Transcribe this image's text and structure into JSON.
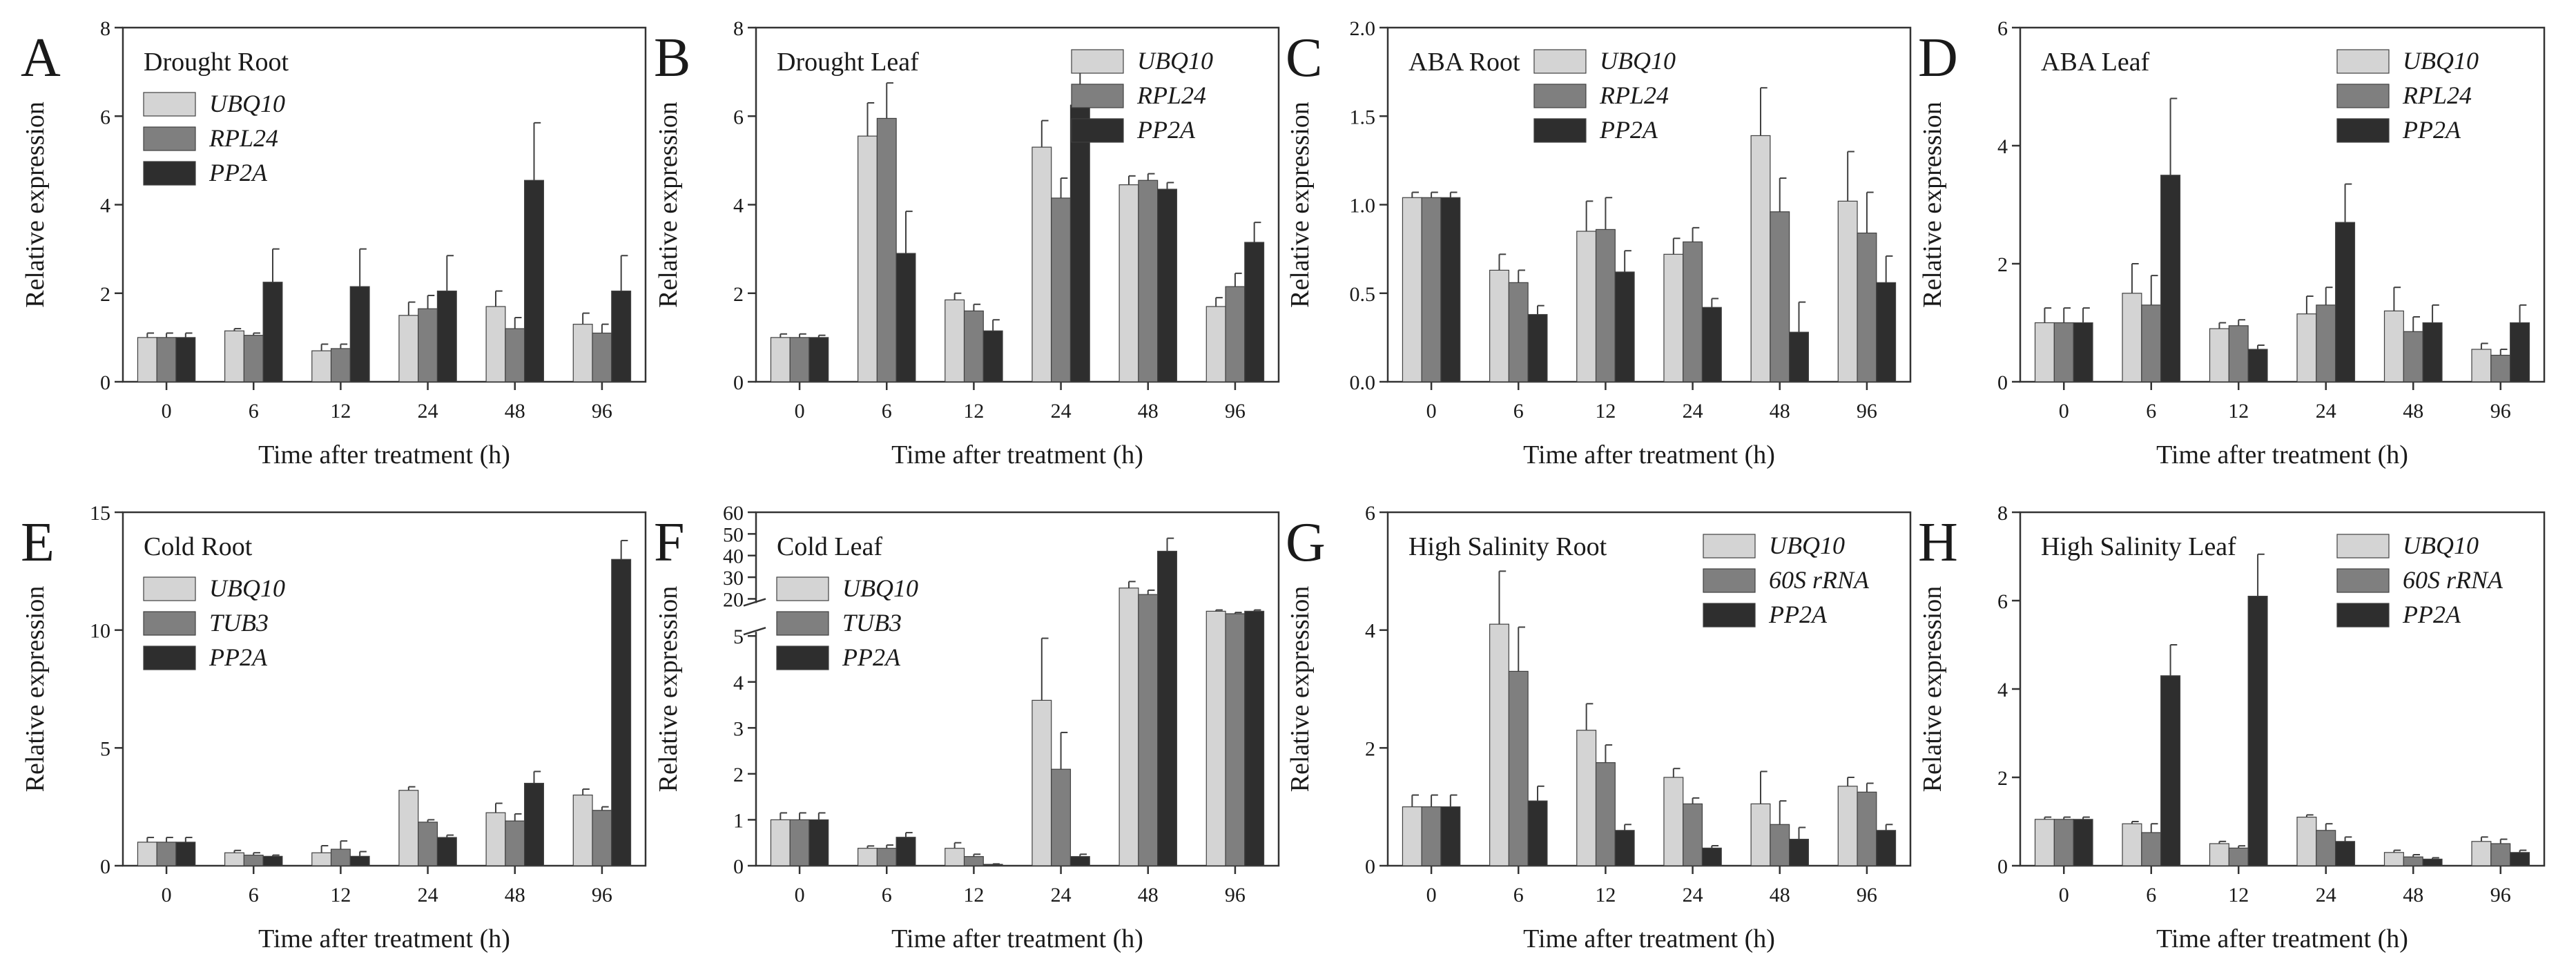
{
  "figure": {
    "xlabel": "Time after treatment (h)",
    "ylabel": "Relative expression",
    "categories": [
      "0",
      "6",
      "12",
      "24",
      "48",
      "96"
    ]
  },
  "colors": {
    "s1": "#d4d4d4",
    "s2": "#7f7f7f",
    "s3": "#2e2e2e",
    "frame": "#333333"
  },
  "chart_data": [
    {
      "letter": "A",
      "title": "Drought Root",
      "type": "bar",
      "categories": [
        "0",
        "6",
        "12",
        "24",
        "48",
        "96"
      ],
      "xlabel": "Time after treatment (h)",
      "ylabel": "Relative expression",
      "ylim": [
        0,
        8
      ],
      "yticks": [
        "0",
        "2",
        "4",
        "6",
        "8"
      ],
      "legend": "top-left",
      "series": [
        {
          "name": "UBQ10",
          "values": [
            1.0,
            1.15,
            0.7,
            1.5,
            1.7,
            1.3
          ],
          "errors": [
            0.1,
            0.05,
            0.15,
            0.3,
            0.35,
            0.25
          ]
        },
        {
          "name": "RPL24",
          "values": [
            1.0,
            1.05,
            0.75,
            1.65,
            1.2,
            1.1
          ],
          "errors": [
            0.1,
            0.05,
            0.1,
            0.3,
            0.25,
            0.2
          ]
        },
        {
          "name": "PP2A",
          "values": [
            1.0,
            2.25,
            2.15,
            2.05,
            4.55,
            2.05
          ],
          "errors": [
            0.1,
            0.75,
            0.85,
            0.8,
            1.3,
            0.8
          ]
        }
      ]
    },
    {
      "letter": "B",
      "title": "Drought Leaf",
      "type": "bar",
      "categories": [
        "0",
        "6",
        "12",
        "24",
        "48",
        "96"
      ],
      "xlabel": "Time after treatment (h)",
      "ylabel": "Relative expression",
      "ylim": [
        0,
        8
      ],
      "yticks": [
        "0",
        "2",
        "4",
        "6",
        "8"
      ],
      "legend": "top-right",
      "series": [
        {
          "name": "UBQ10",
          "values": [
            1.0,
            5.55,
            1.85,
            5.3,
            4.45,
            1.7
          ],
          "errors": [
            0.08,
            0.75,
            0.15,
            0.6,
            0.2,
            0.2
          ]
        },
        {
          "name": "RPL24",
          "values": [
            1.0,
            5.95,
            1.6,
            4.15,
            4.55,
            2.15
          ],
          "errors": [
            0.08,
            0.8,
            0.15,
            0.45,
            0.15,
            0.3
          ]
        },
        {
          "name": "PP2A",
          "values": [
            1.0,
            2.9,
            1.15,
            6.25,
            4.35,
            3.15
          ],
          "errors": [
            0.05,
            0.95,
            0.25,
            0.75,
            0.15,
            0.45
          ]
        }
      ]
    },
    {
      "letter": "C",
      "title": "ABA Root",
      "type": "bar",
      "categories": [
        "0",
        "6",
        "12",
        "24",
        "48",
        "96"
      ],
      "xlabel": "Time after treatment (h)",
      "ylabel": "Relative expression",
      "ylim": [
        0,
        2.0
      ],
      "yticks": [
        "0.0",
        "0.5",
        "1.0",
        "1.5",
        "2.0"
      ],
      "legend": "top-center",
      "series": [
        {
          "name": "UBQ10",
          "values": [
            1.04,
            0.63,
            0.85,
            0.72,
            1.39,
            1.02
          ],
          "errors": [
            0.03,
            0.09,
            0.17,
            0.09,
            0.27,
            0.28
          ]
        },
        {
          "name": "RPL24",
          "values": [
            1.04,
            0.56,
            0.86,
            0.79,
            0.96,
            0.84
          ],
          "errors": [
            0.03,
            0.07,
            0.18,
            0.08,
            0.19,
            0.23
          ]
        },
        {
          "name": "PP2A",
          "values": [
            1.04,
            0.38,
            0.62,
            0.42,
            0.28,
            0.56
          ],
          "errors": [
            0.03,
            0.05,
            0.12,
            0.05,
            0.17,
            0.15
          ]
        }
      ]
    },
    {
      "letter": "D",
      "title": "ABA Leaf",
      "type": "bar",
      "categories": [
        "0",
        "6",
        "12",
        "24",
        "48",
        "96"
      ],
      "xlabel": "Time after treatment (h)",
      "ylabel": "Relative expression",
      "ylim": [
        0,
        6
      ],
      "yticks": [
        "0",
        "2",
        "4",
        "6"
      ],
      "legend": "top-right",
      "series": [
        {
          "name": "UBQ10",
          "values": [
            1.0,
            1.5,
            0.9,
            1.15,
            1.2,
            0.55
          ],
          "errors": [
            0.25,
            0.5,
            0.1,
            0.3,
            0.4,
            0.1
          ]
        },
        {
          "name": "RPL24",
          "values": [
            1.0,
            1.3,
            0.95,
            1.3,
            0.85,
            0.45
          ],
          "errors": [
            0.25,
            0.5,
            0.1,
            0.3,
            0.25,
            0.1
          ]
        },
        {
          "name": "PP2A",
          "values": [
            1.0,
            3.5,
            0.55,
            2.7,
            1.0,
            1.0
          ],
          "errors": [
            0.25,
            1.3,
            0.07,
            0.65,
            0.3,
            0.3
          ]
        }
      ]
    },
    {
      "letter": "E",
      "title": "Cold Root",
      "type": "bar",
      "categories": [
        "0",
        "6",
        "12",
        "24",
        "48",
        "96"
      ],
      "xlabel": "Time after treatment (h)",
      "ylabel": "Relative expression",
      "ylim": [
        0,
        15
      ],
      "yticks": [
        "0",
        "5",
        "10",
        "15"
      ],
      "legend": "top-left",
      "series": [
        {
          "name": "UBQ10",
          "values": [
            1.0,
            0.55,
            0.55,
            3.2,
            2.25,
            3.0
          ],
          "errors": [
            0.2,
            0.1,
            0.3,
            0.15,
            0.4,
            0.25
          ]
        },
        {
          "name": "TUB3",
          "values": [
            1.0,
            0.45,
            0.7,
            1.85,
            1.9,
            2.35
          ],
          "errors": [
            0.2,
            0.1,
            0.35,
            0.1,
            0.3,
            0.15
          ]
        },
        {
          "name": "PP2A",
          "values": [
            1.0,
            0.4,
            0.4,
            1.2,
            3.5,
            13.0
          ],
          "errors": [
            0.2,
            0.05,
            0.2,
            0.1,
            0.5,
            0.8
          ]
        }
      ]
    },
    {
      "letter": "F",
      "title": "Cold Leaf",
      "type": "bar",
      "categories": [
        "0",
        "6",
        "12",
        "24",
        "48",
        "96"
      ],
      "xlabel": "Time after treatment (h)",
      "ylabel": "Relative expression",
      "ylim": [
        0,
        60
      ],
      "yticks": [
        "0",
        "1",
        "2",
        "3",
        "4",
        "5",
        "20",
        "30",
        "40",
        "50",
        "60"
      ],
      "broken_axis": {
        "lower": [
          0,
          5
        ],
        "upper": [
          20,
          60
        ]
      },
      "legend": "top-left",
      "series": [
        {
          "name": "UBQ10",
          "values": [
            1.0,
            0.38,
            0.38,
            3.6,
            25.0,
            15.0
          ],
          "errors": [
            0.15,
            0.05,
            0.12,
            1.35,
            3.0,
            0.5
          ]
        },
        {
          "name": "TUB3",
          "values": [
            1.0,
            0.38,
            0.2,
            2.1,
            22.0,
            14.0
          ],
          "errors": [
            0.15,
            0.07,
            0.05,
            0.8,
            2.0,
            0.5
          ]
        },
        {
          "name": "PP2A",
          "values": [
            1.0,
            0.62,
            0.03,
            0.2,
            42.0,
            15.0
          ],
          "errors": [
            0.15,
            0.1,
            0.01,
            0.05,
            6.0,
            0.5
          ]
        }
      ]
    },
    {
      "letter": "G",
      "title": "High Salinity Root",
      "type": "bar",
      "categories": [
        "0",
        "6",
        "12",
        "24",
        "48",
        "96"
      ],
      "xlabel": "Time after treatment (h)",
      "ylabel": "Relative expression",
      "ylim": [
        0,
        6
      ],
      "yticks": [
        "0",
        "2",
        "4",
        "6"
      ],
      "legend": "top-right",
      "series": [
        {
          "name": "UBQ10",
          "values": [
            1.0,
            4.1,
            2.3,
            1.5,
            1.05,
            1.35
          ],
          "errors": [
            0.2,
            0.9,
            0.45,
            0.15,
            0.55,
            0.15
          ]
        },
        {
          "name": "60S rRNA",
          "values": [
            1.0,
            3.3,
            1.75,
            1.05,
            0.7,
            1.25
          ],
          "errors": [
            0.2,
            0.75,
            0.3,
            0.1,
            0.4,
            0.15
          ]
        },
        {
          "name": "PP2A",
          "values": [
            1.0,
            1.1,
            0.6,
            0.3,
            0.45,
            0.6
          ],
          "errors": [
            0.2,
            0.25,
            0.1,
            0.04,
            0.2,
            0.1
          ]
        }
      ]
    },
    {
      "letter": "H",
      "title": "High Salinity Leaf",
      "type": "bar",
      "categories": [
        "0",
        "6",
        "12",
        "24",
        "48",
        "96"
      ],
      "xlabel": "Time after treatment (h)",
      "ylabel": "Relative expression",
      "ylim": [
        0,
        8
      ],
      "yticks": [
        "0",
        "2",
        "4",
        "6",
        "8"
      ],
      "legend": "top-right",
      "series": [
        {
          "name": "UBQ10",
          "values": [
            1.05,
            0.95,
            0.5,
            1.1,
            0.3,
            0.55
          ],
          "errors": [
            0.05,
            0.05,
            0.05,
            0.05,
            0.05,
            0.1
          ]
        },
        {
          "name": "60S rRNA",
          "values": [
            1.05,
            0.75,
            0.4,
            0.8,
            0.2,
            0.5
          ],
          "errors": [
            0.05,
            0.2,
            0.05,
            0.15,
            0.05,
            0.1
          ]
        },
        {
          "name": "PP2A",
          "values": [
            1.05,
            4.3,
            6.1,
            0.55,
            0.15,
            0.3
          ],
          "errors": [
            0.05,
            0.7,
            0.95,
            0.1,
            0.03,
            0.05
          ]
        }
      ]
    }
  ]
}
